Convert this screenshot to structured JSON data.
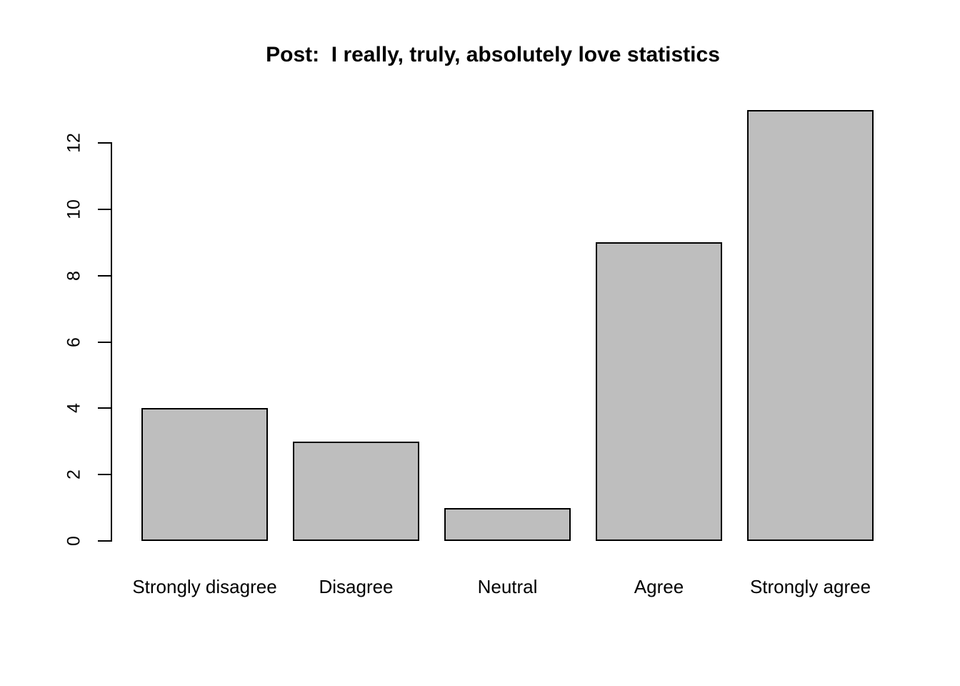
{
  "chart_data": {
    "type": "bar",
    "title": "Post:  I really, truly, absolutely love statistics",
    "categories": [
      "Strongly disagree",
      "Disagree",
      "Neutral",
      "Agree",
      "Strongly agree"
    ],
    "values": [
      4,
      3,
      1,
      9,
      13
    ],
    "xlabel": "",
    "ylabel": "",
    "yticks": [
      0,
      2,
      4,
      6,
      8,
      10,
      12
    ],
    "ylim": [
      0,
      12
    ],
    "bar_fill": "#BEBEBE",
    "bar_border": "#000000",
    "grid": false,
    "legend": false,
    "y_tick_label_rotation": 90
  }
}
